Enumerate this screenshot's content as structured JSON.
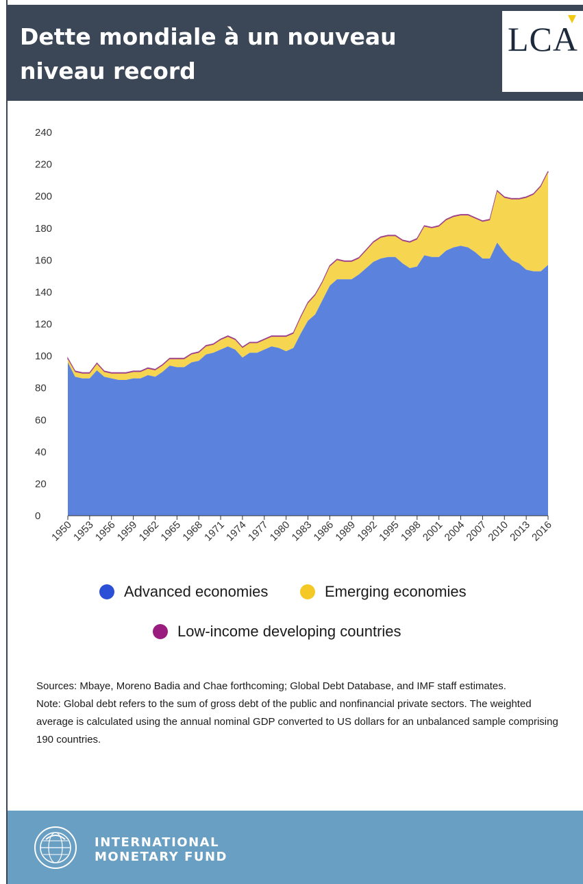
{
  "header": {
    "title": "Dette mondiale à un nouveau\nniveau record",
    "logo_text": "LCA"
  },
  "colors": {
    "header_bg": "#3b4656",
    "advanced": "#5b82dc",
    "emerging": "#f6d551",
    "low_income": "#a0428a",
    "footer_bg": "#6a9fc4"
  },
  "chart_data": {
    "type": "area",
    "stacked": true,
    "ylim": [
      0,
      240
    ],
    "yticks": [
      0,
      20,
      40,
      60,
      80,
      100,
      120,
      140,
      160,
      180,
      200,
      220,
      240
    ],
    "x": [
      1950,
      1951,
      1952,
      1953,
      1954,
      1955,
      1956,
      1957,
      1958,
      1959,
      1960,
      1961,
      1962,
      1963,
      1964,
      1965,
      1966,
      1967,
      1968,
      1969,
      1970,
      1971,
      1972,
      1973,
      1974,
      1975,
      1976,
      1977,
      1978,
      1979,
      1980,
      1981,
      1982,
      1983,
      1984,
      1985,
      1986,
      1987,
      1988,
      1989,
      1990,
      1991,
      1992,
      1993,
      1994,
      1995,
      1996,
      1997,
      1998,
      1999,
      2000,
      2001,
      2002,
      2003,
      2004,
      2005,
      2006,
      2007,
      2008,
      2009,
      2010,
      2011,
      2012,
      2013,
      2014,
      2015,
      2016
    ],
    "xticks": [
      1950,
      1953,
      1956,
      1959,
      1962,
      1965,
      1968,
      1971,
      1974,
      1977,
      1980,
      1983,
      1986,
      1989,
      1992,
      1995,
      1998,
      2001,
      2004,
      2007,
      2010,
      2013,
      2016
    ],
    "series": [
      {
        "name": "Advanced economies",
        "color": "#5b82dc",
        "values": [
          96,
          87,
          86,
          86,
          91,
          87,
          86,
          85,
          85,
          86,
          86,
          88,
          87,
          90,
          94,
          93,
          93,
          96,
          97,
          101,
          102,
          104,
          106,
          104,
          99,
          102,
          102,
          104,
          106,
          105,
          103,
          105,
          114,
          122,
          126,
          135,
          144,
          148,
          148,
          148,
          151,
          155,
          159,
          161,
          162,
          162,
          158,
          155,
          156,
          163,
          162,
          162,
          166,
          168,
          169,
          168,
          165,
          161,
          161,
          171,
          165,
          160,
          158,
          154,
          153,
          153,
          157
        ]
      },
      {
        "name": "Emerging economies",
        "color": "#f6d551",
        "values": [
          2,
          3,
          3,
          3,
          4,
          3,
          3,
          4,
          4,
          4,
          4,
          4,
          4,
          4,
          4,
          5,
          5,
          5,
          5,
          5,
          5,
          6,
          6,
          6,
          6,
          6,
          6,
          6,
          6,
          7,
          9,
          9,
          10,
          11,
          12,
          11,
          12,
          12,
          11,
          11,
          10,
          11,
          12,
          13,
          13,
          13,
          14,
          16,
          17,
          18,
          18,
          19,
          19,
          19,
          19,
          20,
          21,
          23,
          24,
          32,
          34,
          38,
          40,
          45,
          48,
          53,
          58
        ]
      },
      {
        "name": "Low-income developing countries",
        "color": "#a0428a",
        "values": [
          0.6,
          0.6,
          0.6,
          0.6,
          0.6,
          0.6,
          0.6,
          0.6,
          0.6,
          0.6,
          0.6,
          0.6,
          0.6,
          0.6,
          0.6,
          0.6,
          0.6,
          0.6,
          0.6,
          0.6,
          0.6,
          0.6,
          0.6,
          0.6,
          0.6,
          0.6,
          0.6,
          0.6,
          0.6,
          0.6,
          0.6,
          0.6,
          0.6,
          0.6,
          0.6,
          0.6,
          0.6,
          0.6,
          0.6,
          0.6,
          0.6,
          0.6,
          0.6,
          0.6,
          0.6,
          0.6,
          0.6,
          0.6,
          0.6,
          0.6,
          0.6,
          0.6,
          0.6,
          0.6,
          0.6,
          0.6,
          0.6,
          0.6,
          0.6,
          0.6,
          0.6,
          0.6,
          0.6,
          0.6,
          0.6,
          0.6,
          0.6
        ]
      }
    ],
    "legend_position": "bottom",
    "grid": false
  },
  "legend": {
    "items": [
      {
        "label": "Advanced economies",
        "color": "#2b50d6"
      },
      {
        "label": "Emerging economies",
        "color": "#f5c925"
      },
      {
        "label": "Low-income developing countries",
        "color": "#9b1c7f"
      }
    ]
  },
  "notes": {
    "sources": "Sources: Mbaye, Moreno Badia and Chae forthcoming; Global Debt Database, and IMF staff estimates.",
    "note": "Note: Global debt refers to the sum of gross debt of the public and nonfinancial private sectors. The weighted average is calculated using the annual nominal GDP converted to US dollars for an unbalanced sample comprising 190 countries."
  },
  "footer": {
    "org_name": "INTERNATIONAL\nMONETARY FUND",
    "seal_icon": "imf-seal-icon"
  }
}
